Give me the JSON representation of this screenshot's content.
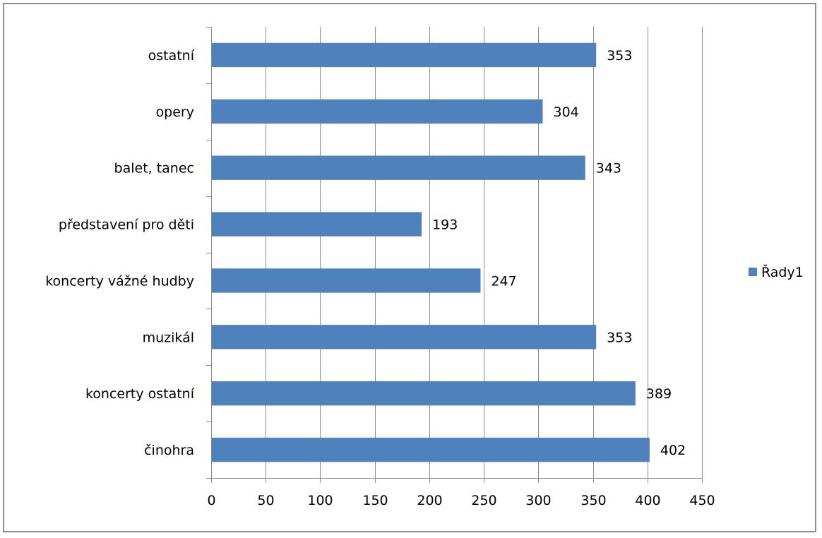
{
  "chart_data": {
    "type": "bar",
    "orientation": "horizontal",
    "categories": [
      "ostatní",
      "opery",
      "balet, tanec",
      "představení pro děti",
      "koncerty vážné hudby",
      "muzikál",
      "koncerty ostatní",
      "činohra"
    ],
    "series": [
      {
        "name": "Řady1",
        "values": [
          353,
          304,
          343,
          193,
          247,
          353,
          389,
          402
        ],
        "color": "#4f81bd"
      }
    ],
    "data_labels": [
      "353",
      "304",
      "343",
      "193",
      "247",
      "353",
      "389",
      "402"
    ],
    "x_ticks": [
      "0",
      "50",
      "100",
      "150",
      "200",
      "250",
      "300",
      "350",
      "400",
      "450"
    ],
    "xlim": [
      0,
      450
    ],
    "grid": "vertical",
    "legend_position": "right",
    "gridline_color": "#8c8c8c"
  }
}
